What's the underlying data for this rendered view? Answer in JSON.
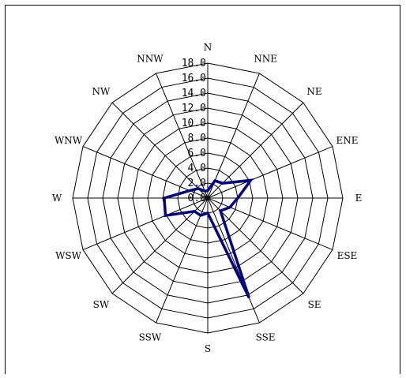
{
  "chart_data": {
    "type": "radar",
    "title": "",
    "directions": [
      "N",
      "NNE",
      "NE",
      "ENE",
      "E",
      "ESE",
      "SE",
      "SSE",
      "S",
      "SSW",
      "SW",
      "WSW",
      "W",
      "WNW",
      "NW",
      "NNW"
    ],
    "ticks": [
      "0.0",
      "2.0",
      "4.0",
      "6.0",
      "8.0",
      "10.0",
      "12.0",
      "14.0",
      "16.0",
      "18.0"
    ],
    "rmax": 18,
    "grid": true,
    "legend": "none",
    "series": [
      {
        "color": "#000080",
        "values": [
          1.0,
          2.5,
          2.8,
          6.2,
          4.0,
          3.2,
          2.4,
          14.4,
          2.0,
          2.5,
          2.5,
          6.1,
          5.8,
          2.6,
          1.8,
          1.0
        ]
      }
    ]
  }
}
